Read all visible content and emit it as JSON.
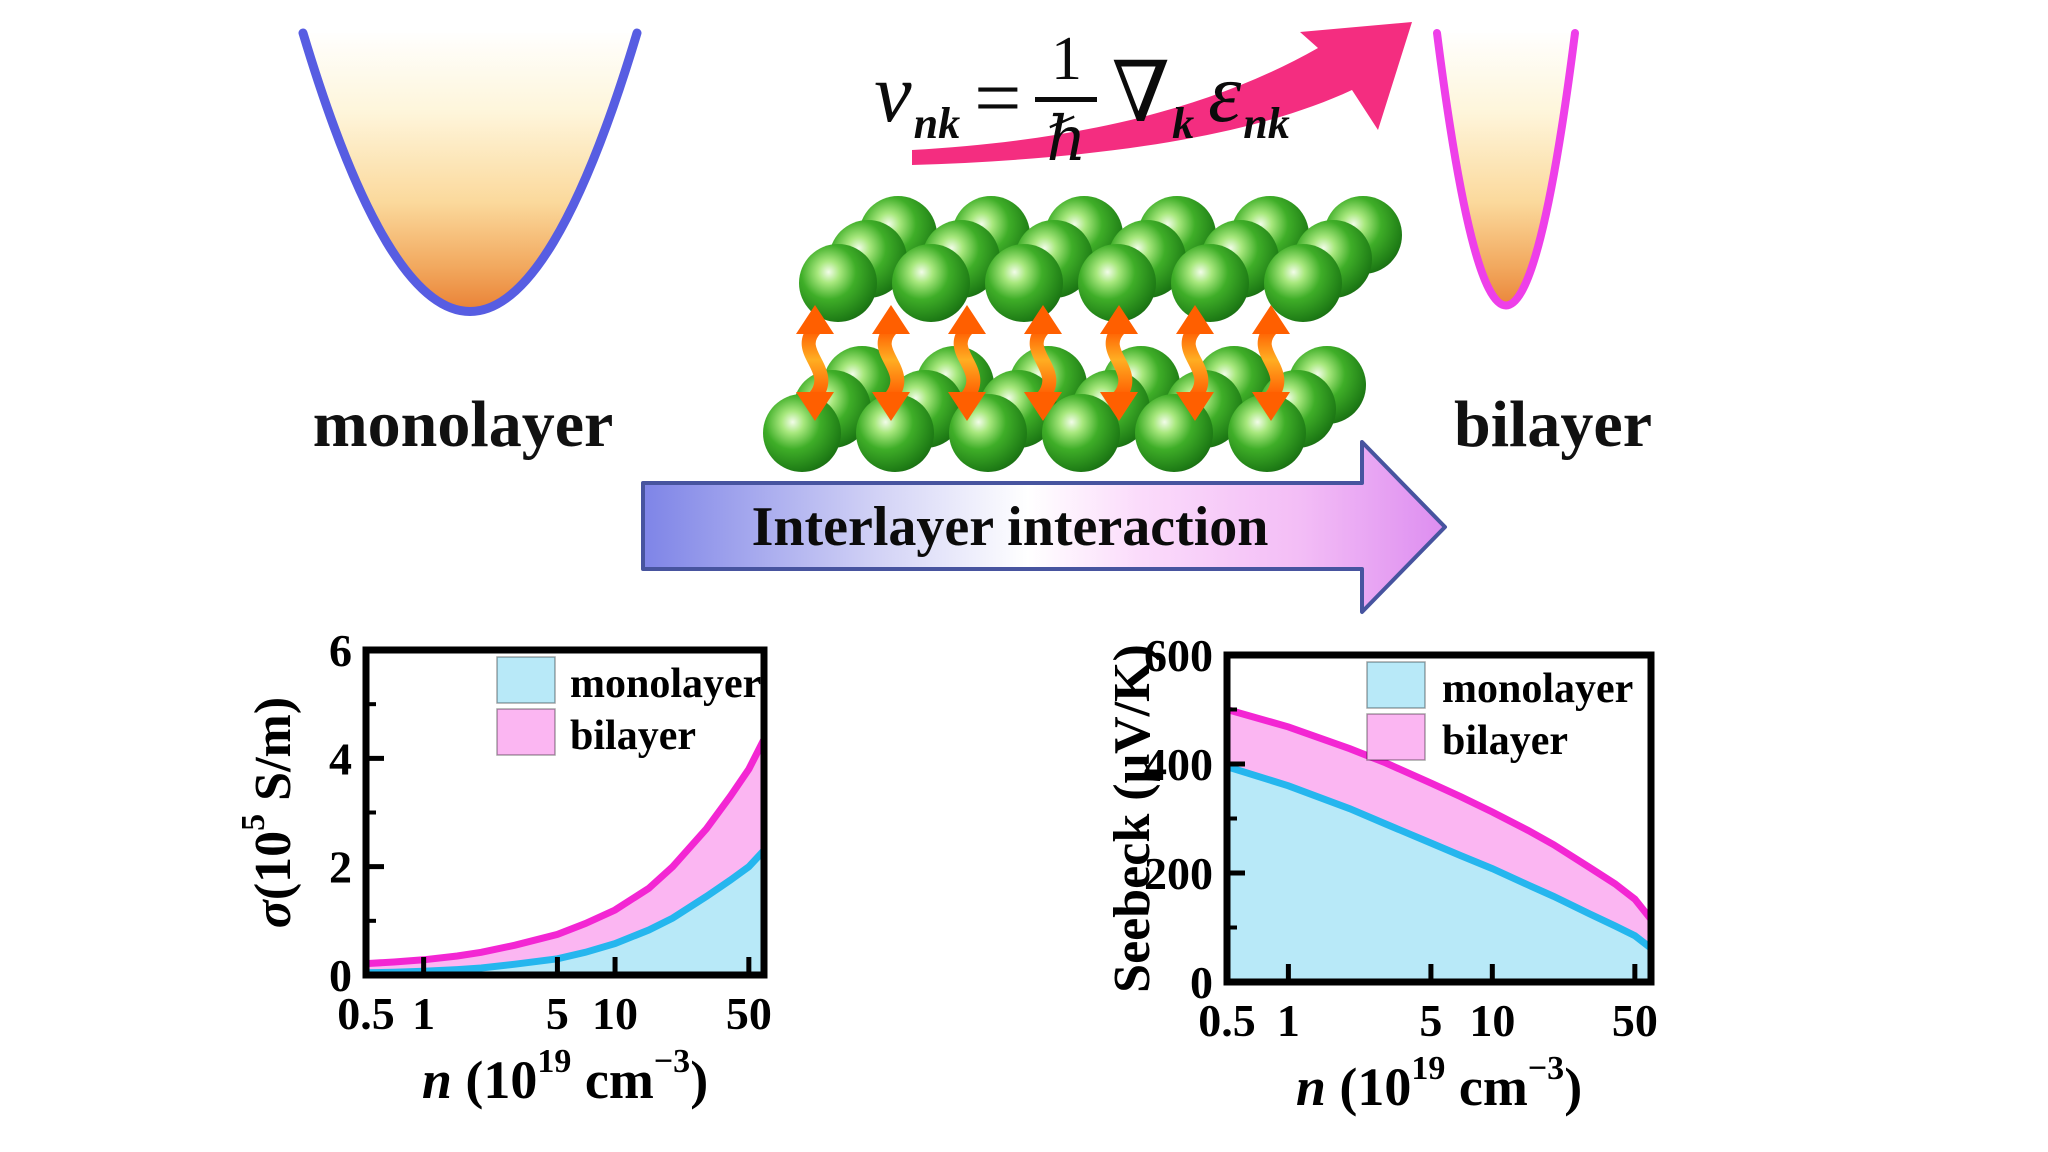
{
  "figure": {
    "monolayer_label": "monolayer",
    "bilayer_label": "bilayer",
    "interlayer_arrow_label": "Interlayer interaction",
    "equation": {
      "lhs": "v",
      "lhs_sub": "nk",
      "equals": "=",
      "frac_num": "1",
      "frac_den": "ℏ",
      "nabla": "∇",
      "nabla_sub": "k",
      "epsilon": "ε",
      "epsilon_sub": "nk"
    }
  },
  "colors": {
    "monolayer_band_stroke": "#575de2",
    "bilayer_band_stroke": "#ee3fe9",
    "band_fill_top": "#ffffff",
    "band_fill_bottom": "#ea8438",
    "velocity_arrow_pink": "#f42d80",
    "interlayer_arrow_left": "#7e84e7",
    "interlayer_arrow_right": "#dd8df0",
    "interlayer_arrow_border": "#47549f",
    "atom_green": "#2f9e20",
    "coupling_arrow_orange": "#ff6a00",
    "monolayer_line": "#25b6ee",
    "monolayer_fill": "#b8e9f8",
    "bilayer_line": "#f326d3",
    "bilayer_fill": "#fbb6f2"
  },
  "chart_data": [
    {
      "type": "area",
      "name": "electrical-conductivity",
      "title": "",
      "xscale": "log",
      "xlim": [
        0.5,
        60
      ],
      "ylim": [
        0,
        6
      ],
      "grid": false,
      "legend_position": "top-center-inside",
      "xlabel": "n (10^19 cm^-3)",
      "ylabel": "σ(10^5 S/m)",
      "xlabel_parts": [
        {
          "t": "n ",
          "italic": true
        },
        {
          "t": "(10"
        },
        {
          "t": "19",
          "sup": true
        },
        {
          "t": " cm"
        },
        {
          "t": "−3",
          "sup": true
        },
        {
          "t": ")"
        }
      ],
      "ylabel_parts": [
        {
          "t": "σ",
          "italic": true
        },
        {
          "t": "(10"
        },
        {
          "t": "5",
          "sup": true
        },
        {
          "t": " S/m)"
        }
      ],
      "xticks": {
        "values": [
          0.5,
          1,
          5,
          10,
          50
        ],
        "labels": [
          "0.5",
          "1",
          "5",
          "10",
          "50"
        ]
      },
      "yticks": {
        "values": [
          0,
          2,
          4,
          6
        ],
        "labels": [
          "0",
          "2",
          "4",
          "6"
        ],
        "minor": [
          1,
          3,
          5
        ]
      },
      "series": [
        {
          "name": "monolayer",
          "line_color": "#25b6ee",
          "fill_color": "#b8e9f8",
          "points": [
            [
              0.5,
              0.04
            ],
            [
              0.7,
              0.05
            ],
            [
              1,
              0.07
            ],
            [
              1.5,
              0.1
            ],
            [
              2,
              0.13
            ],
            [
              3,
              0.2
            ],
            [
              5,
              0.3
            ],
            [
              7,
              0.42
            ],
            [
              10,
              0.58
            ],
            [
              15,
              0.83
            ],
            [
              20,
              1.05
            ],
            [
              30,
              1.45
            ],
            [
              40,
              1.75
            ],
            [
              50,
              2.0
            ],
            [
              60,
              2.3
            ]
          ]
        },
        {
          "name": "bilayer",
          "line_color": "#f326d3",
          "fill_color": "#fbb6f2",
          "points": [
            [
              0.5,
              0.21
            ],
            [
              0.7,
              0.24
            ],
            [
              1,
              0.28
            ],
            [
              1.5,
              0.35
            ],
            [
              2,
              0.42
            ],
            [
              3,
              0.55
            ],
            [
              5,
              0.75
            ],
            [
              7,
              0.95
            ],
            [
              10,
              1.2
            ],
            [
              15,
              1.6
            ],
            [
              20,
              2.0
            ],
            [
              30,
              2.7
            ],
            [
              40,
              3.3
            ],
            [
              50,
              3.8
            ],
            [
              60,
              4.35
            ]
          ]
        }
      ]
    },
    {
      "type": "area",
      "name": "seebeck-coefficient",
      "title": "",
      "xscale": "log",
      "xlim": [
        0.5,
        60
      ],
      "ylim": [
        0,
        600
      ],
      "grid": false,
      "legend_position": "top-center-inside",
      "xlabel": "n (10^19 cm^-3)",
      "ylabel": "Seebeck (μV/K)",
      "xlabel_parts": [
        {
          "t": "n ",
          "italic": true
        },
        {
          "t": "(10"
        },
        {
          "t": "19",
          "sup": true
        },
        {
          "t": " cm"
        },
        {
          "t": "−3",
          "sup": true
        },
        {
          "t": ")"
        }
      ],
      "ylabel_parts": [
        {
          "t": "Seebeck (μV/K)"
        }
      ],
      "xticks": {
        "values": [
          0.5,
          1,
          5,
          10,
          50
        ],
        "labels": [
          "0.5",
          "1",
          "5",
          "10",
          "50"
        ]
      },
      "yticks": {
        "values": [
          0,
          200,
          400,
          600
        ],
        "labels": [
          "0",
          "200",
          "400",
          "600"
        ],
        "minor": [
          100,
          300,
          500
        ]
      },
      "series": [
        {
          "name": "monolayer",
          "line_color": "#25b6ee",
          "fill_color": "#b8e9f8",
          "points": [
            [
              0.5,
              395
            ],
            [
              1,
              360
            ],
            [
              2,
              318
            ],
            [
              3,
              290
            ],
            [
              5,
              255
            ],
            [
              7,
              232
            ],
            [
              10,
              208
            ],
            [
              15,
              178
            ],
            [
              20,
              157
            ],
            [
              30,
              125
            ],
            [
              40,
              103
            ],
            [
              50,
              85
            ],
            [
              60,
              62
            ]
          ]
        },
        {
          "name": "bilayer",
          "line_color": "#f326d3",
          "fill_color": "#fbb6f2",
          "points": [
            [
              0.5,
              500
            ],
            [
              1,
              468
            ],
            [
              2,
              428
            ],
            [
              3,
              402
            ],
            [
              5,
              365
            ],
            [
              7,
              340
            ],
            [
              10,
              312
            ],
            [
              15,
              278
            ],
            [
              20,
              252
            ],
            [
              30,
              210
            ],
            [
              40,
              180
            ],
            [
              50,
              152
            ],
            [
              60,
              115
            ]
          ]
        }
      ]
    }
  ]
}
